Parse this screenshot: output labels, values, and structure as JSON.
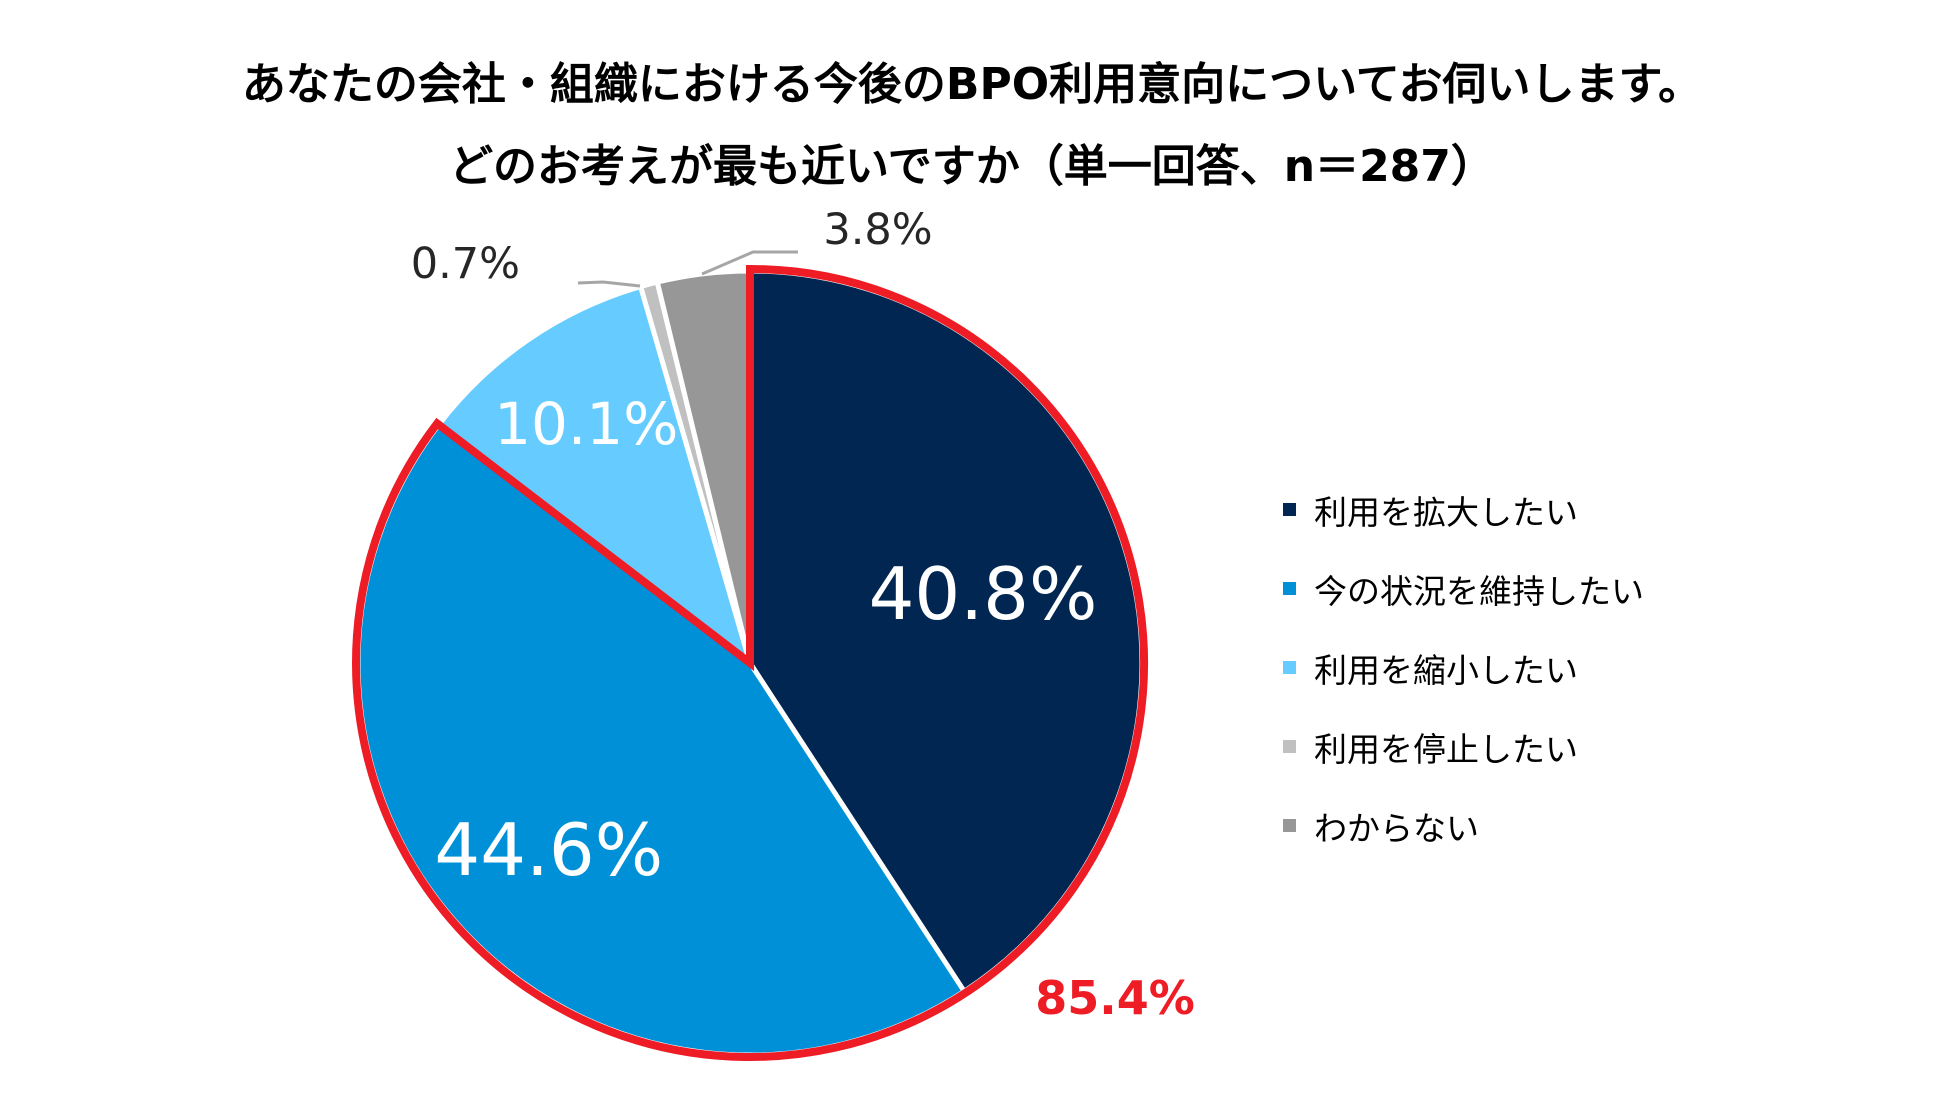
{
  "chart_data": {
    "type": "pie",
    "title": "あなたの会社・組織における今後のBPO利用意向についてお伺いします。",
    "subtitle": "どのお考えが最も近いですか（単一回答、n＝287）",
    "start_angle_deg": 0,
    "direction": "clockwise",
    "categories": [
      "利用を拡大したい",
      "今の状況を維持したい",
      "利用を縮小したい",
      "利用を停止したい",
      "わからない"
    ],
    "values": [
      40.8,
      44.6,
      10.1,
      0.7,
      3.8
    ],
    "data_labels": [
      "40.8%",
      "44.6%",
      "10.1%",
      "0.7%",
      "3.8%"
    ],
    "colors": [
      "#002651",
      "#0090d8",
      "#66ccff",
      "#c0c0c0",
      "#979797"
    ],
    "label_colors": [
      "#ffffff",
      "#ffffff",
      "#ffffff",
      "#262626",
      "#262626"
    ],
    "legend_position": "right",
    "highlight": {
      "categories": [
        "利用を拡大したい",
        "今の状況を維持したい"
      ],
      "label": "85.4%",
      "color": "#ee1c25"
    }
  }
}
